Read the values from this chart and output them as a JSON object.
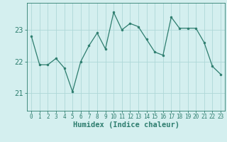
{
  "x": [
    0,
    1,
    2,
    3,
    4,
    5,
    6,
    7,
    8,
    9,
    10,
    11,
    12,
    13,
    14,
    15,
    16,
    17,
    18,
    19,
    20,
    21,
    22,
    23
  ],
  "y": [
    22.8,
    21.9,
    21.9,
    22.1,
    21.8,
    21.05,
    22.0,
    22.5,
    22.9,
    22.4,
    23.55,
    23.0,
    23.2,
    23.1,
    22.7,
    22.3,
    22.2,
    23.4,
    23.05,
    23.05,
    23.05,
    22.6,
    21.85,
    21.6
  ],
  "line_color": "#2d7d6e",
  "marker": "o",
  "marker_size": 2.0,
  "background_color": "#d4efef",
  "grid_color": "#aed8d8",
  "tick_color": "#2d7d6e",
  "xlabel": "Humidex (Indice chaleur)",
  "yticks": [
    21,
    22,
    23
  ],
  "ylim": [
    20.45,
    23.85
  ],
  "xlim": [
    -0.5,
    23.5
  ],
  "xtick_labels": [
    "0",
    "1",
    "2",
    "3",
    "4",
    "5",
    "6",
    "7",
    "8",
    "9",
    "10",
    "11",
    "12",
    "13",
    "14",
    "15",
    "16",
    "17",
    "18",
    "19",
    "20",
    "21",
    "22",
    "23"
  ],
  "xlabel_fontsize": 7.5,
  "ytick_fontsize": 7.5,
  "xtick_fontsize": 5.5
}
